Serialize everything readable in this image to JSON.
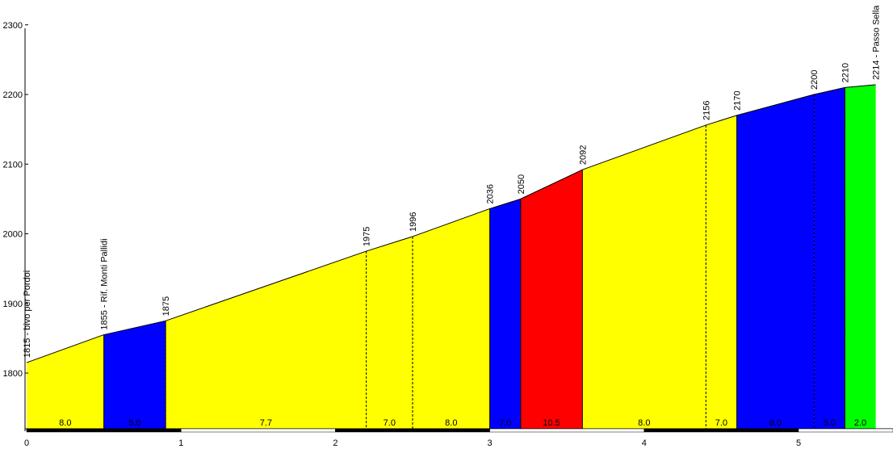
{
  "chart_data": {
    "type": "area",
    "xlim": [
      0,
      5.62
    ],
    "ylim": [
      1720,
      2300
    ],
    "y_ticks": [
      1800,
      1900,
      2000,
      2100,
      2200,
      2300
    ],
    "x_ticks": [
      0,
      1,
      2,
      3,
      4,
      5
    ],
    "profile": [
      {
        "km": 0,
        "elev": 1815
      },
      {
        "km": 0.5,
        "elev": 1855
      },
      {
        "km": 0.9,
        "elev": 1875
      },
      {
        "km": 2.2,
        "elev": 1975
      },
      {
        "km": 2.5,
        "elev": 1996
      },
      {
        "km": 3.0,
        "elev": 2036
      },
      {
        "km": 3.2,
        "elev": 2050
      },
      {
        "km": 3.6,
        "elev": 2092
      },
      {
        "km": 4.4,
        "elev": 2156
      },
      {
        "km": 4.6,
        "elev": 2170
      },
      {
        "km": 5.1,
        "elev": 2200
      },
      {
        "km": 5.3,
        "elev": 2210
      },
      {
        "km": 5.5,
        "elev": 2214
      }
    ],
    "segments": [
      {
        "from": 0,
        "to": 0.5,
        "grade": "8.0",
        "color": "#ffff00"
      },
      {
        "from": 0.5,
        "to": 0.9,
        "grade": "5.0",
        "color": "#0000ff"
      },
      {
        "from": 0.9,
        "to": 2.2,
        "grade": "7.7",
        "color": "#ffff00"
      },
      {
        "from": 2.2,
        "to": 2.5,
        "grade": "7.0",
        "color": "#ffff00"
      },
      {
        "from": 2.5,
        "to": 3.0,
        "grade": "8.0",
        "color": "#ffff00"
      },
      {
        "from": 3.0,
        "to": 3.2,
        "grade": "7.0",
        "color": "#0000ff"
      },
      {
        "from": 3.2,
        "to": 3.6,
        "grade": "10.5",
        "color": "#ff0000"
      },
      {
        "from": 3.6,
        "to": 4.4,
        "grade": "8.0",
        "color": "#ffff00"
      },
      {
        "from": 4.4,
        "to": 4.6,
        "grade": "7.0",
        "color": "#ffff00"
      },
      {
        "from": 4.6,
        "to": 5.1,
        "grade": "6.0",
        "color": "#0000ff"
      },
      {
        "from": 5.1,
        "to": 5.3,
        "grade": "5.0",
        "color": "#0000ff"
      },
      {
        "from": 5.3,
        "to": 5.5,
        "grade": "2.0",
        "color": "#00ff00"
      }
    ],
    "point_labels": [
      {
        "km": 0,
        "elev": 1815,
        "text": "1815 - bivo per Pordoi"
      },
      {
        "km": 0.5,
        "elev": 1855,
        "text": "1855 - Rif. Monti Pallidi"
      },
      {
        "km": 0.9,
        "elev": 1875,
        "text": "1875"
      },
      {
        "km": 2.2,
        "elev": 1975,
        "text": "1975"
      },
      {
        "km": 2.5,
        "elev": 1996,
        "text": "1996"
      },
      {
        "km": 3.0,
        "elev": 2036,
        "text": "2036"
      },
      {
        "km": 3.2,
        "elev": 2050,
        "text": "2050"
      },
      {
        "km": 3.6,
        "elev": 2092,
        "text": "2092"
      },
      {
        "km": 4.4,
        "elev": 2156,
        "text": "2156"
      },
      {
        "km": 4.6,
        "elev": 2170,
        "text": "2170"
      },
      {
        "km": 5.1,
        "elev": 2200,
        "text": "2200"
      },
      {
        "km": 5.3,
        "elev": 2210,
        "text": "2210"
      },
      {
        "km": 5.5,
        "elev": 2214,
        "text": "2214 - Passo Sella"
      }
    ],
    "dashed_dividers_km": [
      0.9,
      2.2,
      2.5,
      4.4,
      5.1,
      5.3
    ],
    "km_bar_colors": [
      "#000000",
      "#ffffff"
    ]
  }
}
